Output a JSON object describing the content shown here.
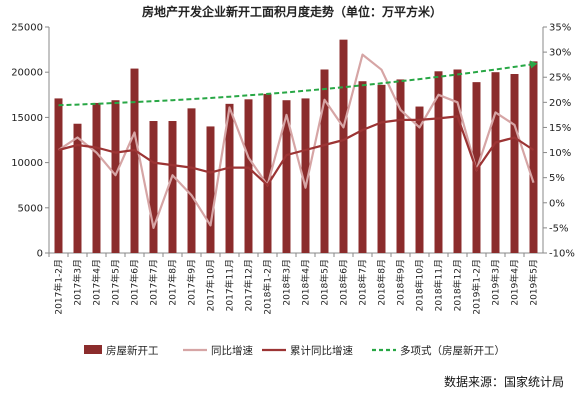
{
  "chart_data": {
    "type": "bar",
    "title": "房地产开发企业新开工面积月度走势（单位：万平方米）",
    "categories": [
      "2017年1-2月",
      "2017年3月",
      "2017年4月",
      "2017年5月",
      "2017年6月",
      "2017年7月",
      "2017年8月",
      "2017年9月",
      "2017年10月",
      "2017年11月",
      "2017年12月",
      "2018年1-2月",
      "2018年3月",
      "2018年4月",
      "2018年5月",
      "2018年6月",
      "2018年7月",
      "2018年8月",
      "2018年9月",
      "2018年10月",
      "2018年11月",
      "2018年12月",
      "2019年1-2月",
      "2019年3月",
      "2019年4月",
      "2019年5月"
    ],
    "y_left": {
      "ticks": [
        "0",
        "5000",
        "10000",
        "15000",
        "20000",
        "25000"
      ],
      "lim": [
        0,
        25000
      ]
    },
    "y_right": {
      "ticks": [
        "-10%",
        "-5%",
        "0%",
        "5%",
        "10%",
        "15%",
        "20%",
        "25%",
        "30%",
        "35%"
      ],
      "lim": [
        -10,
        35
      ]
    },
    "series": [
      {
        "name": "房屋新开工",
        "kind": "bar",
        "axis": "left",
        "color": "#8b2c2c",
        "values": [
          17100,
          14300,
          16600,
          16900,
          20400,
          14600,
          14600,
          16000,
          14000,
          16500,
          17000,
          17600,
          16900,
          17100,
          20300,
          23600,
          19000,
          18600,
          19200,
          16200,
          20100,
          20300,
          18900,
          20000,
          19800,
          21200
        ]
      },
      {
        "name": "同比增速",
        "kind": "line",
        "axis": "right",
        "color": "#d6a5a5",
        "values": [
          10.5,
          13.0,
          10.0,
          5.5,
          14.0,
          -5.0,
          5.5,
          1.5,
          -4.5,
          19.0,
          9.0,
          3.5,
          17.5,
          3.0,
          20.5,
          15.0,
          29.5,
          26.5,
          18.5,
          15.0,
          21.5,
          20.0,
          6.5,
          18.0,
          15.5,
          4.0
        ]
      },
      {
        "name": "累计同比增速",
        "kind": "line",
        "axis": "right",
        "color": "#9c3434",
        "values": [
          10.5,
          11.5,
          11.0,
          10.0,
          10.5,
          8.0,
          7.5,
          7.0,
          6.0,
          7.0,
          7.0,
          3.5,
          9.5,
          10.5,
          11.5,
          12.5,
          14.5,
          16.0,
          16.5,
          16.5,
          16.8,
          17.2,
          6.5,
          12.0,
          13.0,
          10.5
        ]
      },
      {
        "name": "多项式（房屋新开工）",
        "kind": "trend",
        "axis": "left",
        "color": "#28a745",
        "values": [
          16350,
          16420,
          16500,
          16590,
          16690,
          16790,
          16900,
          17020,
          17150,
          17290,
          17440,
          17600,
          17770,
          17950,
          18140,
          18340,
          18550,
          18770,
          19000,
          19240,
          19490,
          19750,
          20020,
          20300,
          20590,
          20900
        ]
      }
    ],
    "legend_position": "bottom",
    "grid": false,
    "source_note": "数据来源：国家统计局"
  }
}
